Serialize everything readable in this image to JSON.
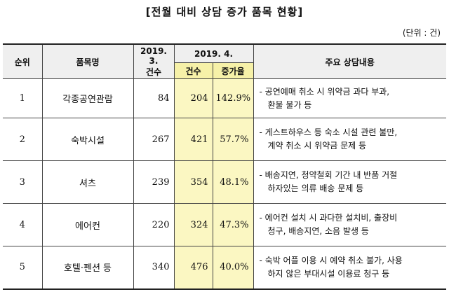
{
  "title": "[전월 대비 상담 증가 품목 현황]",
  "unit": "(단위 : 건)",
  "header": {
    "rank": "순위",
    "item": "품목명",
    "prev_period": "2019. 3.",
    "prev_count": "건수",
    "curr_period": "2019. 4.",
    "curr_count": "건수",
    "growth": "증가율",
    "detail": "주요 상담내용"
  },
  "rows": [
    {
      "rank": "1",
      "item": "각종공연관람",
      "prev": "84",
      "curr": "204",
      "growth": "142.9%",
      "detail1": "- 공연예매 취소 시 위약금 과다 부과,",
      "detail2": "환불 불가 등"
    },
    {
      "rank": "2",
      "item": "숙박시설",
      "prev": "267",
      "curr": "421",
      "growth": "57.7%",
      "detail1": "- 게스트하우스 등 숙소 시설 관련 불만,",
      "detail2": "계약 취소 시 위약금 문제 등"
    },
    {
      "rank": "3",
      "item": "셔츠",
      "prev": "239",
      "curr": "354",
      "growth": "48.1%",
      "detail1": "- 배송지연, 청약철회 기간 내 반품 거절",
      "detail2": "하자있는 의류 배송 문제 등"
    },
    {
      "rank": "4",
      "item": "에어컨",
      "prev": "220",
      "curr": "324",
      "growth": "47.3%",
      "detail1": "- 에어컨 설치 시 과다한 설치비, 출장비",
      "detail2": "청구, 배송지연, 소음 발생 등"
    },
    {
      "rank": "5",
      "item": "호텔·펜션 등",
      "prev": "340",
      "curr": "476",
      "growth": "40.0%",
      "detail1": "- 숙박 어플 이용 시 예약 취소 불가, 사용",
      "detail2": "하지 않은 부대시설 이용료 청구 등"
    }
  ]
}
